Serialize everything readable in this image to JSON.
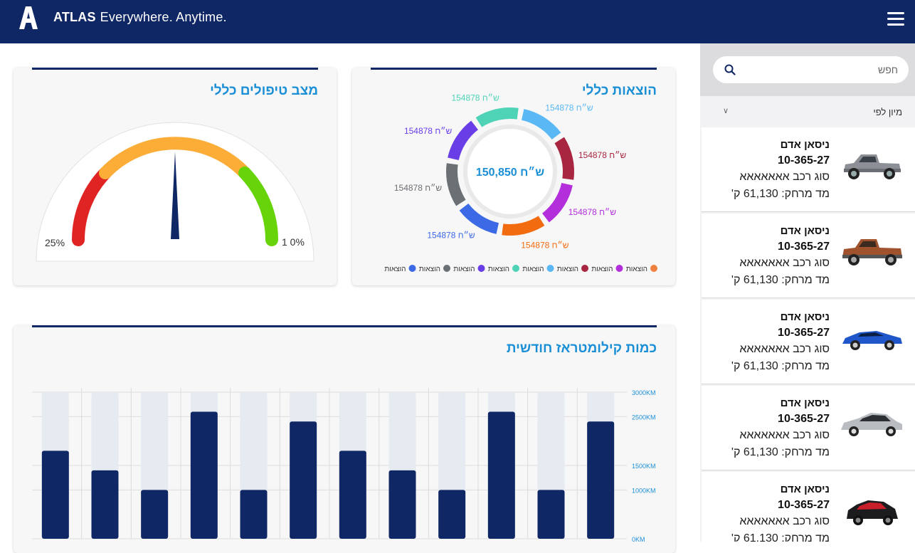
{
  "header": {
    "brand_name": "ATLAS",
    "tagline": "Everywhere. Anytime.",
    "logo_icon": "atlas-a-logo-icon",
    "menu_icon": "hamburger-menu-icon",
    "bg_color": "#0f2764"
  },
  "sidebar": {
    "search": {
      "placeholder": "חפש",
      "icon": "search-icon"
    },
    "sort": {
      "label": "מיון לפי",
      "icon": "chevron-down-icon"
    },
    "cars": [
      {
        "name": "ניסאן אדם",
        "plate": "10-365-27",
        "type": "סוג רכב אאאאאאא",
        "km": "מד מרחק: 61,130 ק'",
        "image": "gray-pickup-truck"
      },
      {
        "name": "ניסאן אדם",
        "plate": "10-365-27",
        "type": "סוג רכב אאאאאאא",
        "km": "מד מרחק: 61,130 ק'",
        "image": "bronze-pickup-truck"
      },
      {
        "name": "ניסאן אדם",
        "plate": "10-365-27",
        "type": "סוג רכב אאאאאאא",
        "km": "מד מרחק: 61,130 ק'",
        "image": "blue-sports-car"
      },
      {
        "name": "ניסאן אדם",
        "plate": "10-365-27",
        "type": "סוג רכב אאאאאאא",
        "km": "מד מרחק: 61,130 ק'",
        "image": "silver-sedan"
      },
      {
        "name": "ניסאן אדם",
        "plate": "10-365-27",
        "type": "סוג רכב אאאאאאא",
        "km": "מד מרחק: 61,130 ק'",
        "image": "black-red-hatchback"
      }
    ]
  },
  "gauge_card": {
    "title": "מצב טיפולים כללי",
    "min_label": "25%",
    "max_label": "1 0%",
    "needle_value": 0.5,
    "colors": {
      "red": "#e02424",
      "orange": "#fbad38",
      "green": "#67d40a",
      "needle": "#0f2764"
    }
  },
  "donut_card": {
    "title": "הוצאות כללי",
    "center_label": "150,850 ש״ח",
    "center_color": "#1a8fd6",
    "segment_label": "154878 ש״ח",
    "legend_label": "הוצאות",
    "segments": [
      {
        "color": "#5ab8f5",
        "value": 154878
      },
      {
        "color": "#a8263f",
        "value": 154878
      },
      {
        "color": "#b22fdb",
        "value": 154878
      },
      {
        "color": "#f26b0f",
        "value": 154878
      },
      {
        "color": "#3c6ae6",
        "value": 154878
      },
      {
        "color": "#6b7075",
        "value": 154878
      },
      {
        "color": "#6a3ee6",
        "value": 154878
      },
      {
        "color": "#4ed3b6",
        "value": 154878
      }
    ],
    "legend_colors": [
      "#f08040",
      "#b22fdb",
      "#a8263f",
      "#5ab8f5",
      "#4ed3b6",
      "#6a3ee6",
      "#6b7075",
      "#3c6ae6"
    ]
  },
  "bar_card": {
    "title": "כמות קילומטראז חודשית"
  },
  "chart_data": {
    "type": "bar",
    "title": "כמות קילומטראז חודשית",
    "xlabel": "",
    "ylabel": "",
    "ylim": [
      0,
      3000
    ],
    "y_ticks": [
      "3000KM",
      "2500KM",
      "1500KM",
      "1000KM",
      "0KM"
    ],
    "y_tick_values": [
      3000,
      2500,
      1500,
      1000,
      0
    ],
    "background_value": 3000,
    "values": [
      1800,
      1400,
      1000,
      2600,
      1000,
      2400,
      1800,
      1400,
      1000,
      2600,
      1000,
      2400
    ],
    "bar_color": "#0f2764",
    "track_color": "#e6ebf1",
    "grid": true
  }
}
